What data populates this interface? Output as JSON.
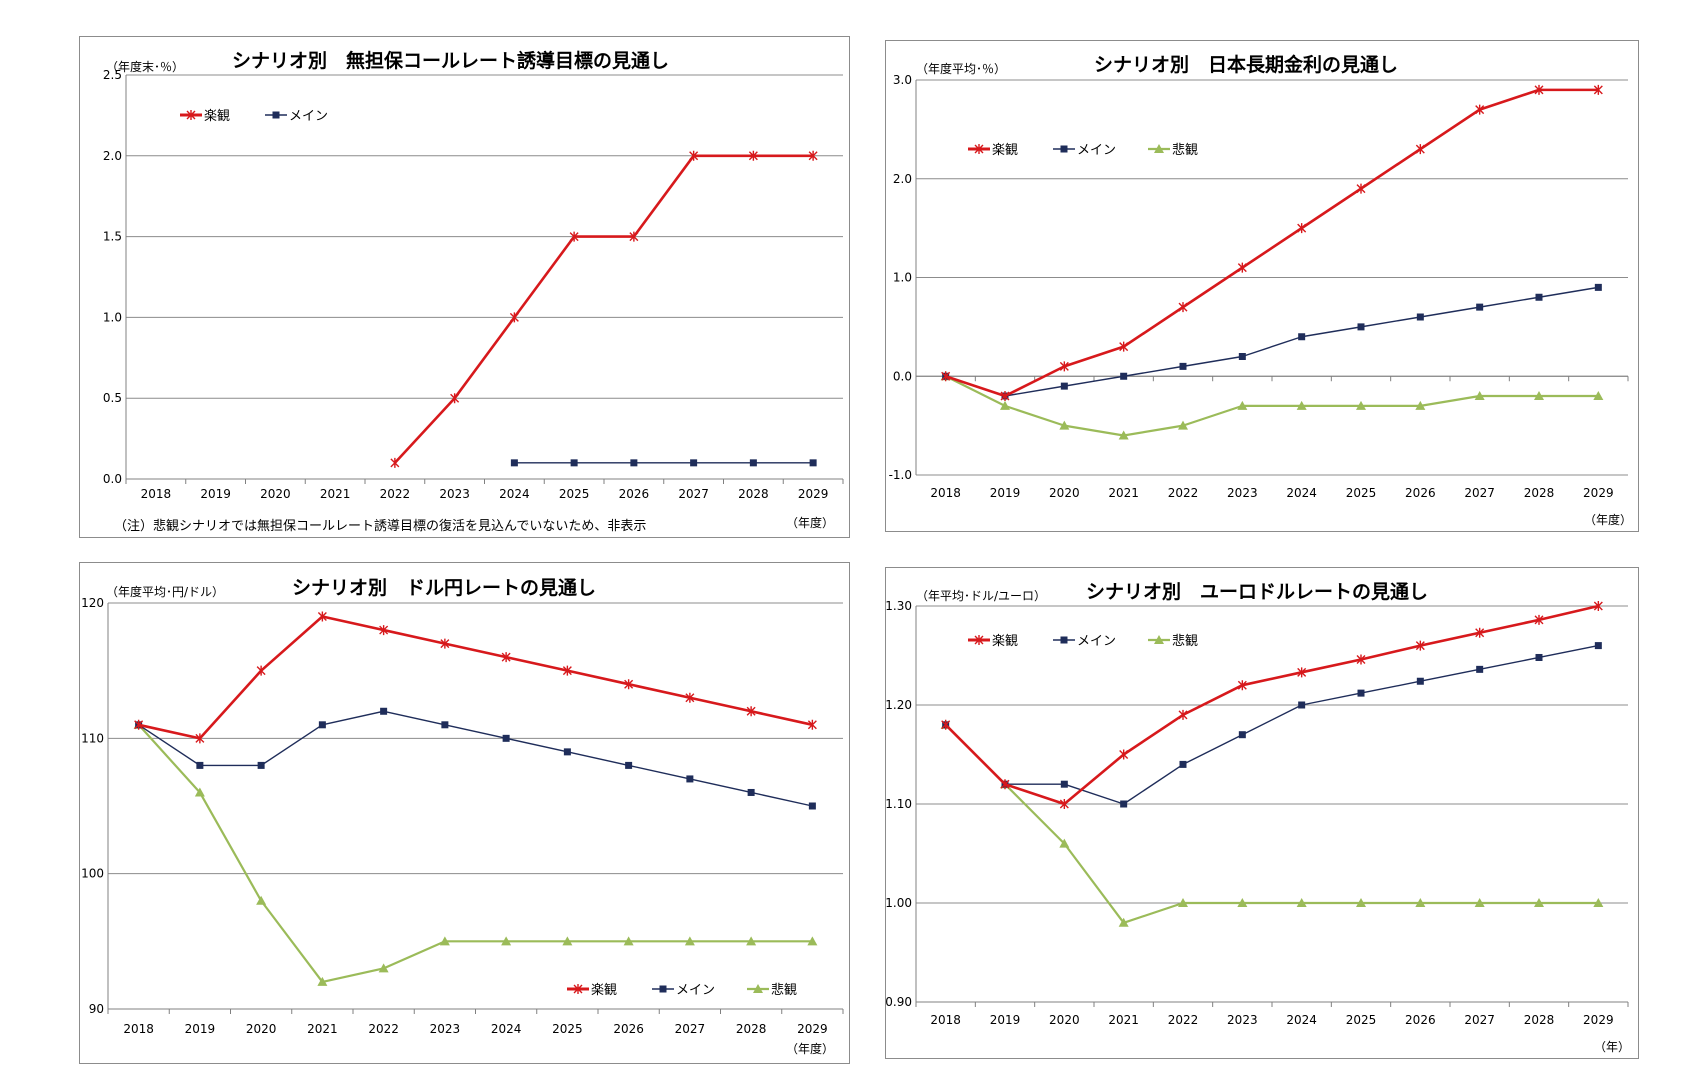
{
  "charts": [
    {
      "title": "シナリオ別　無担保コールレート誘導目標の見通し",
      "unit": "（年度末･％）",
      "xunit": "（年度）",
      "note": "（注）悲観シナリオでは無担保コールレート誘導目標の復活を見込んでいないため、非表示"
    },
    {
      "title": "シナリオ別　日本長期金利の見通し",
      "unit": "（年度平均･％）",
      "xunit": "（年度）"
    },
    {
      "title": "シナリオ別　ドル円レートの見通し",
      "unit": "（年度平均･円/ドル）",
      "xunit": "（年度）"
    },
    {
      "title": "シナリオ別　ユーロドルレートの見通し",
      "unit": "（年平均･ドル/ユーロ）",
      "xunit": "（年）"
    }
  ],
  "colors": {
    "optimistic": "#d7191c",
    "main": "#1f2d5a",
    "pessimistic": "#9bbb59",
    "grid": "#8c8c8c"
  },
  "chart_data": [
    {
      "type": "line",
      "title": "シナリオ別　無担保コールレート誘導目標の見通し",
      "categories": [
        "2018",
        "2019",
        "2020",
        "2021",
        "2022",
        "2023",
        "2024",
        "2025",
        "2026",
        "2027",
        "2028",
        "2029"
      ],
      "ylim": [
        0,
        2.5
      ],
      "yticks": [
        "0.0",
        "0.5",
        "1.0",
        "1.5",
        "2.0",
        "2.5"
      ],
      "grid": true,
      "legend_position": "top-left",
      "series": [
        {
          "name": "楽観",
          "color": "#d7191c",
          "marker": "star",
          "values": [
            null,
            null,
            null,
            null,
            0.1,
            0.5,
            1.0,
            1.5,
            1.5,
            2.0,
            2.0,
            2.0
          ]
        },
        {
          "name": "メイン",
          "color": "#1f2d5a",
          "marker": "square",
          "values": [
            null,
            null,
            null,
            null,
            null,
            null,
            0.1,
            0.1,
            0.1,
            0.1,
            0.1,
            0.1
          ]
        }
      ]
    },
    {
      "type": "line",
      "title": "シナリオ別　日本長期金利の見通し",
      "categories": [
        "2018",
        "2019",
        "2020",
        "2021",
        "2022",
        "2023",
        "2024",
        "2025",
        "2026",
        "2027",
        "2028",
        "2029"
      ],
      "ylim": [
        -1.0,
        3.0
      ],
      "yticks": [
        "-1.0",
        "0.0",
        "1.0",
        "2.0",
        "3.0"
      ],
      "grid": true,
      "legend_position": "top-left",
      "series": [
        {
          "name": "楽観",
          "color": "#d7191c",
          "marker": "star",
          "values": [
            0.0,
            -0.2,
            0.1,
            0.3,
            0.7,
            1.1,
            1.5,
            1.9,
            2.3,
            2.7,
            2.9,
            2.9
          ]
        },
        {
          "name": "メイン",
          "color": "#1f2d5a",
          "marker": "square",
          "values": [
            0.0,
            -0.2,
            -0.1,
            0.0,
            0.1,
            0.2,
            0.4,
            0.5,
            0.6,
            0.7,
            0.8,
            0.9
          ]
        },
        {
          "name": "悲観",
          "color": "#9bbb59",
          "marker": "triangle",
          "values": [
            0.0,
            -0.3,
            -0.5,
            -0.6,
            -0.5,
            -0.3,
            -0.3,
            -0.3,
            -0.3,
            -0.2,
            -0.2,
            -0.2
          ]
        }
      ]
    },
    {
      "type": "line",
      "title": "シナリオ別　ドル円レートの見通し",
      "categories": [
        "2018",
        "2019",
        "2020",
        "2021",
        "2022",
        "2023",
        "2024",
        "2025",
        "2026",
        "2027",
        "2028",
        "2029"
      ],
      "ylim": [
        90,
        120
      ],
      "yticks": [
        "90",
        "100",
        "110",
        "120"
      ],
      "grid": true,
      "legend_position": "bottom-right",
      "series": [
        {
          "name": "楽観",
          "color": "#d7191c",
          "marker": "star",
          "values": [
            111,
            110,
            115,
            119,
            118,
            117,
            116,
            115,
            114,
            113,
            112,
            111
          ]
        },
        {
          "name": "メイン",
          "color": "#1f2d5a",
          "marker": "square",
          "values": [
            111,
            108,
            108,
            111,
            112,
            111,
            110,
            109,
            108,
            107,
            106,
            105
          ]
        },
        {
          "name": "悲観",
          "color": "#9bbb59",
          "marker": "triangle",
          "values": [
            111,
            106,
            98,
            92,
            93,
            95,
            95,
            95,
            95,
            95,
            95,
            95
          ]
        }
      ]
    },
    {
      "type": "line",
      "title": "シナリオ別　ユーロドルレートの見通し",
      "categories": [
        "2018",
        "2019",
        "2020",
        "2021",
        "2022",
        "2023",
        "2024",
        "2025",
        "2026",
        "2027",
        "2028",
        "2029"
      ],
      "ylim": [
        0.9,
        1.3
      ],
      "yticks": [
        "0.90",
        "1.00",
        "1.10",
        "1.20",
        "1.30"
      ],
      "grid": true,
      "legend_position": "top-left",
      "series": [
        {
          "name": "楽観",
          "color": "#d7191c",
          "marker": "star",
          "values": [
            1.18,
            1.12,
            1.1,
            1.15,
            1.19,
            1.22,
            1.233,
            1.246,
            1.26,
            1.273,
            1.286,
            1.3
          ]
        },
        {
          "name": "メイン",
          "color": "#1f2d5a",
          "marker": "square",
          "values": [
            1.18,
            1.12,
            1.12,
            1.1,
            1.14,
            1.17,
            1.2,
            1.212,
            1.224,
            1.236,
            1.248,
            1.26
          ]
        },
        {
          "name": "悲観",
          "color": "#9bbb59",
          "marker": "triangle",
          "values": [
            1.18,
            1.12,
            1.06,
            0.98,
            1.0,
            1.0,
            1.0,
            1.0,
            1.0,
            1.0,
            1.0,
            1.0
          ]
        }
      ]
    }
  ]
}
